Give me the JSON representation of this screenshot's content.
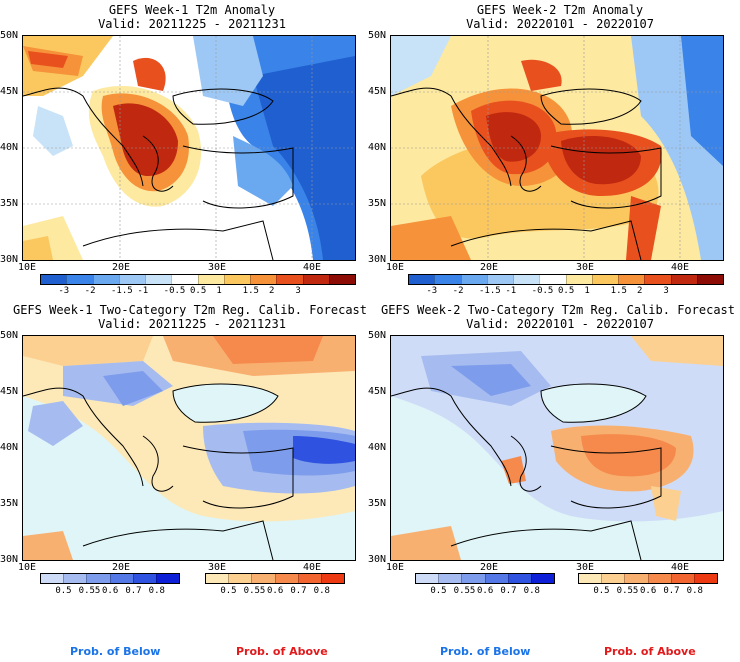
{
  "panels": [
    {
      "title": "GEFS Week-1 T2m Anomaly",
      "valid": "Valid: 20211225 - 20211231"
    },
    {
      "title": "GEFS Week-2 T2m Anomaly",
      "valid": "Valid: 20220101 - 20220107"
    },
    {
      "title": "GEFS Week-1 Two-Category T2m Reg. Calib. Forecast",
      "valid": "Valid: 20211225 - 20211231"
    },
    {
      "title": "GEFS Week-2 Two-Category T2m Reg. Calib. Forecast",
      "valid": "Valid: 20220101 - 20220107"
    }
  ],
  "axes": {
    "lat_labels": [
      "50N",
      "45N",
      "40N",
      "35N",
      "30N"
    ],
    "lon_labels": [
      "10E",
      "20E",
      "30E",
      "40E"
    ]
  },
  "anomaly_colorbar": {
    "labels": [
      "-3",
      "-2",
      "-1.5",
      "-1",
      "-0.5",
      "0.5",
      "1",
      "1.5",
      "2",
      "3"
    ],
    "colors": [
      "#1f5fd0",
      "#3a83e8",
      "#6aa8f0",
      "#9dc8f5",
      "#c8e2f8",
      "#ffffff",
      "#fde9a0",
      "#fbc860",
      "#f5923a",
      "#e8501e",
      "#c02810",
      "#8e0c06"
    ]
  },
  "prob_below_colorbar": {
    "labels": [
      "0.5",
      "0.55",
      "0.6",
      "0.7",
      "0.8"
    ],
    "colors": [
      "#cfdcf7",
      "#a6bcf0",
      "#7d9ceb",
      "#5478e6",
      "#2f52e0",
      "#0e1fd8"
    ]
  },
  "prob_above_colorbar": {
    "labels": [
      "0.5",
      "0.55",
      "0.6",
      "0.7",
      "0.8"
    ],
    "colors": [
      "#fde9b8",
      "#fbd091",
      "#f8b070",
      "#f58a4c",
      "#f26430",
      "#ee3a12"
    ]
  },
  "footer": {
    "below": "Prob. of Below",
    "above": "Prob. of Above"
  },
  "colors": {
    "below_text": "#1a73e8",
    "above_text": "#e31a1c",
    "sea_fill": "#dff5f7"
  }
}
